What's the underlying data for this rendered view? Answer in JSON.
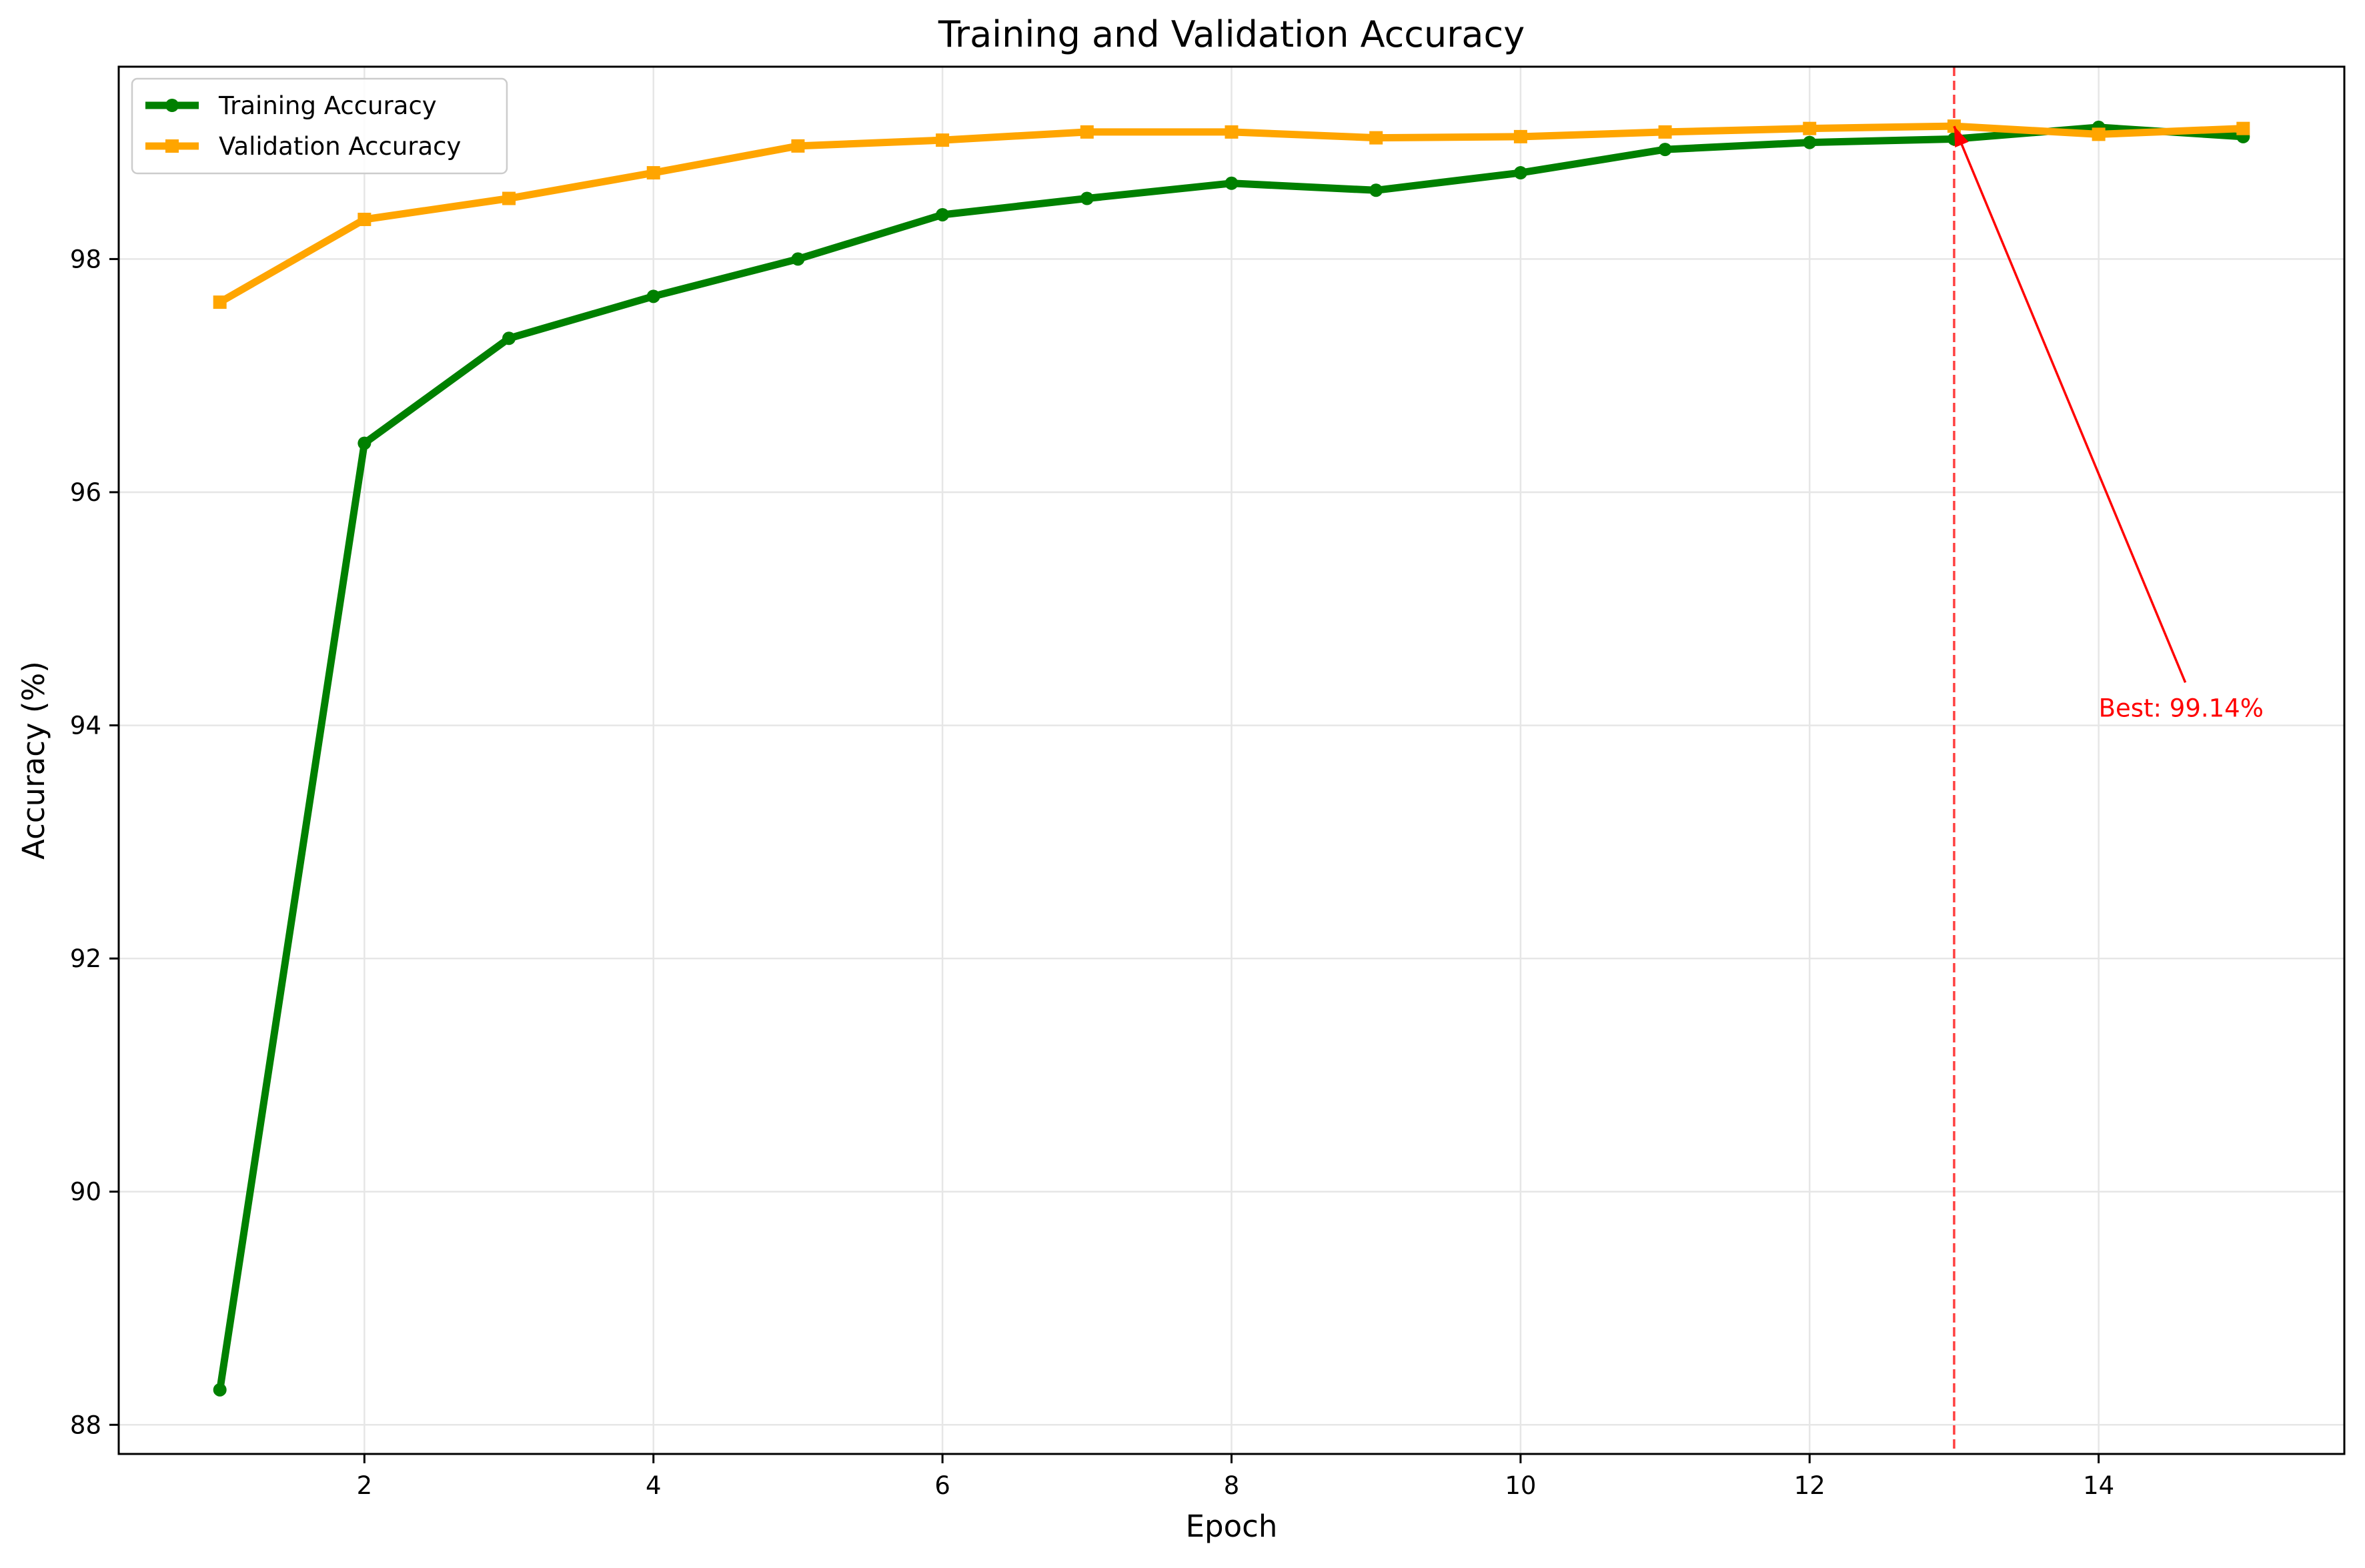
{
  "chart_data": {
    "type": "line",
    "title": "Training and Validation Accuracy",
    "xlabel": "Epoch",
    "ylabel": "Accuracy (%)",
    "xlim": [
      0.3,
      15.7
    ],
    "ylim": [
      87.75,
      99.65
    ],
    "xticks": [
      2,
      4,
      6,
      8,
      10,
      12,
      14
    ],
    "yticks": [
      88,
      90,
      92,
      94,
      96,
      98
    ],
    "grid": true,
    "legend_position": "upper left",
    "x": [
      1,
      2,
      3,
      4,
      5,
      6,
      7,
      8,
      9,
      10,
      11,
      12,
      13,
      14,
      15
    ],
    "series": [
      {
        "name": "Training Accuracy",
        "color": "#008000",
        "marker": "circle",
        "values": [
          88.3,
          96.42,
          97.32,
          97.68,
          98.0,
          98.38,
          98.52,
          98.65,
          98.59,
          98.74,
          98.94,
          99.0,
          99.03,
          99.13,
          99.05
        ]
      },
      {
        "name": "Validation Accuracy",
        "color": "#ffa500",
        "marker": "square",
        "values": [
          97.63,
          98.34,
          98.52,
          98.74,
          98.97,
          99.02,
          99.09,
          99.09,
          99.04,
          99.05,
          99.09,
          99.12,
          99.14,
          99.07,
          99.12
        ]
      }
    ],
    "best_line": {
      "x": 13,
      "color": "#ff0000",
      "style": "dashed"
    },
    "annotation": {
      "text": "Best: 99.14%",
      "color": "#ff0000",
      "point": [
        13,
        99.14
      ],
      "text_pos": [
        14.0,
        94.15
      ]
    }
  }
}
